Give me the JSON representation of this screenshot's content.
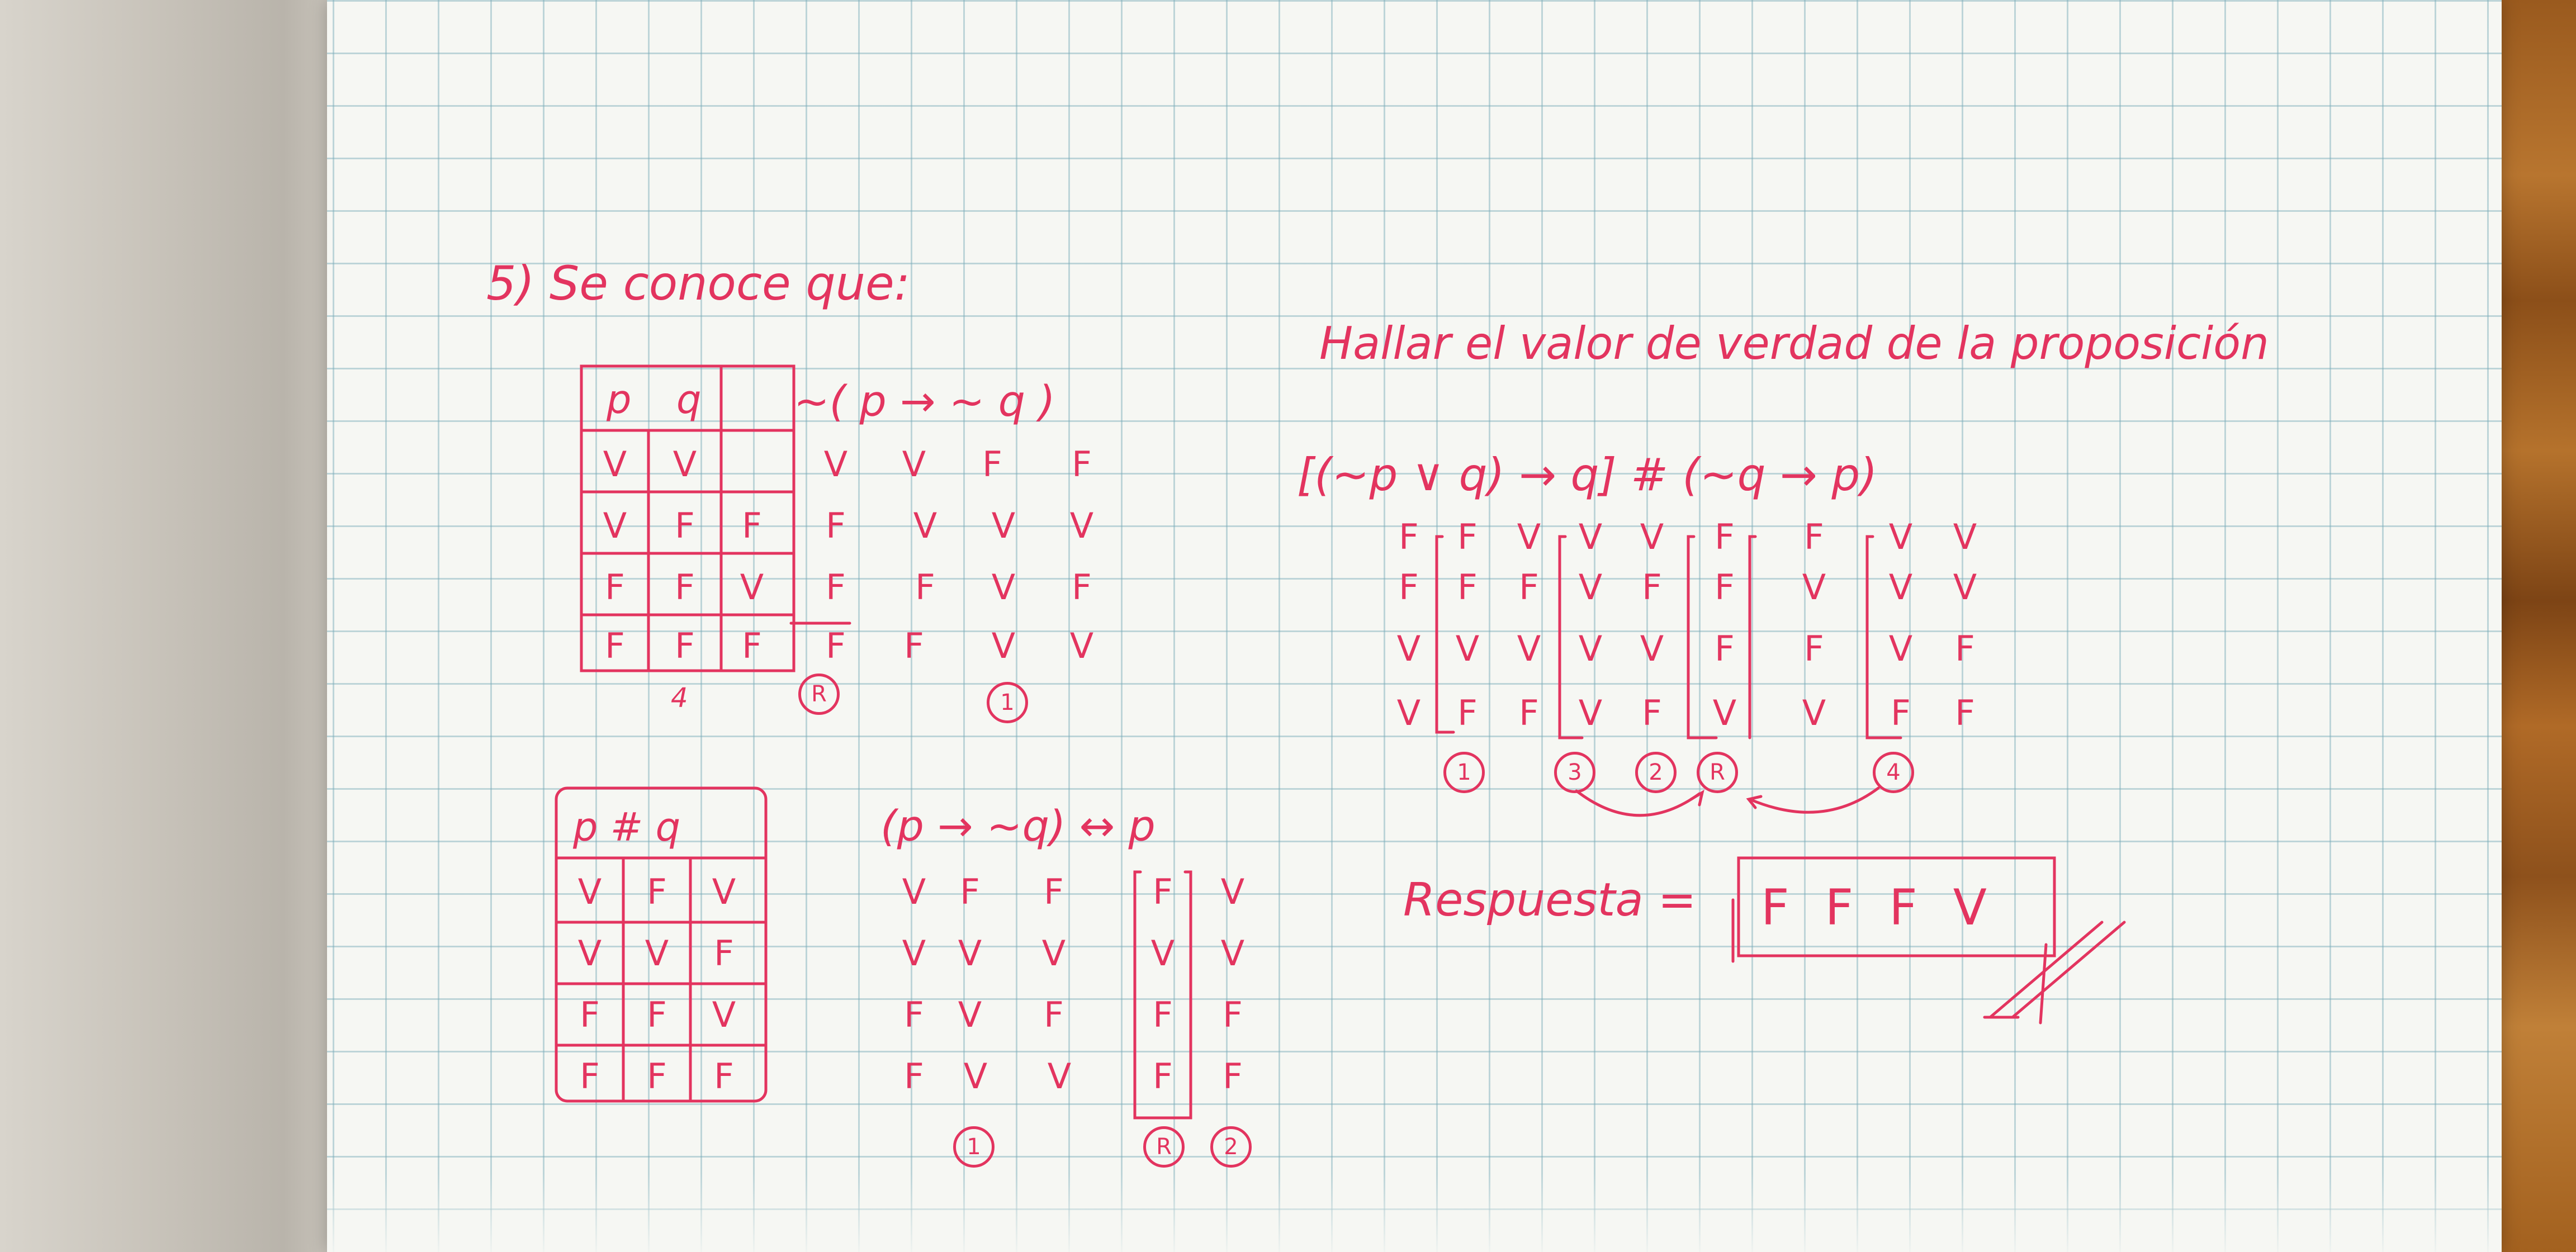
{
  "photo": {
    "title": "5) Se conoce que:",
    "instruction": "Hallar el valor de verdad de la proposición",
    "ink_color": "#e3345f",
    "grid_color": "#78aab9",
    "table1": {
      "header": [
        "p",
        "q",
        "~( p → ~ q )"
      ],
      "rows": [
        [
          "V",
          "V",
          "V",
          "V",
          "F",
          "F"
        ],
        [
          "V",
          "F",
          "F",
          "F",
          "V",
          "V",
          "V"
        ],
        [
          "F",
          "F",
          "V",
          "F",
          "F",
          "V",
          "F"
        ],
        [
          "F",
          "F",
          "F",
          "F",
          "F",
          "V",
          "V"
        ]
      ],
      "marks": [
        "4",
        "R",
        "1"
      ]
    },
    "table2": {
      "header": [
        "p # q",
        "(p → ~q) ↔ p"
      ],
      "rows": [
        [
          "V",
          "F",
          "V",
          "V",
          "F",
          "F",
          "F",
          "V"
        ],
        [
          "V",
          "V",
          "F",
          "V",
          "V",
          "V",
          "V",
          "V"
        ],
        [
          "F",
          "F",
          "V",
          "F",
          "V",
          "F",
          "F",
          "F"
        ],
        [
          "F",
          "F",
          "F",
          "F",
          "V",
          "V",
          "F",
          "F"
        ]
      ],
      "marks": [
        "1",
        "R",
        "2"
      ]
    },
    "table3": {
      "header": "[(~p ∨ q) → q] # (~q → p)",
      "rows": [
        [
          "F",
          "F",
          "V",
          "V",
          "V",
          "F",
          "F",
          "V",
          "V"
        ],
        [
          "F",
          "F",
          "F",
          "V",
          "F",
          "F",
          "V",
          "V",
          "V"
        ],
        [
          "V",
          "V",
          "V",
          "V",
          "V",
          "F",
          "F",
          "V",
          "F"
        ],
        [
          "V",
          "F",
          "F",
          "V",
          "F",
          "V",
          "V",
          "F",
          "F"
        ]
      ],
      "marks": [
        "1",
        "3",
        "2",
        "R",
        "4"
      ]
    },
    "answer_label": "Respuesta =",
    "answer_value": "F F F V"
  }
}
